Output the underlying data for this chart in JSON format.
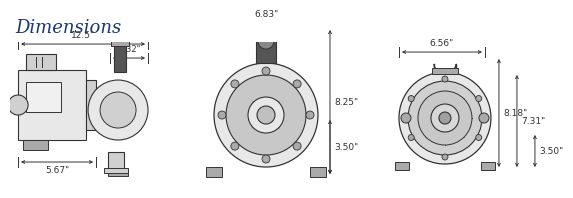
{
  "title": "Dimensions",
  "title_color": "#1a3a6b",
  "title_bg": "#e0e0e0",
  "bg_color": "#ffffff",
  "line_color": "#333333",
  "dim_color": "#333333",
  "body_fill": "#e8e8e8",
  "body_fill2": "#d0d0d0",
  "dark_fill": "#555555",
  "mid_fill": "#aaaaaa",
  "font_size_title": 13,
  "font_size_dim": 6.5,
  "view1": {
    "label_top": "12.5\"",
    "label_top2": "3.32\"",
    "label_bot": "5.67\""
  },
  "view2": {
    "label_top": "6.83\"",
    "label_h1": "8.25\"",
    "label_h2": "3.50\""
  },
  "view3": {
    "label_top": "6.56\"",
    "label_h1": "8.18\"",
    "label_h2": "7.31\"",
    "label_h3": "3.50\""
  }
}
